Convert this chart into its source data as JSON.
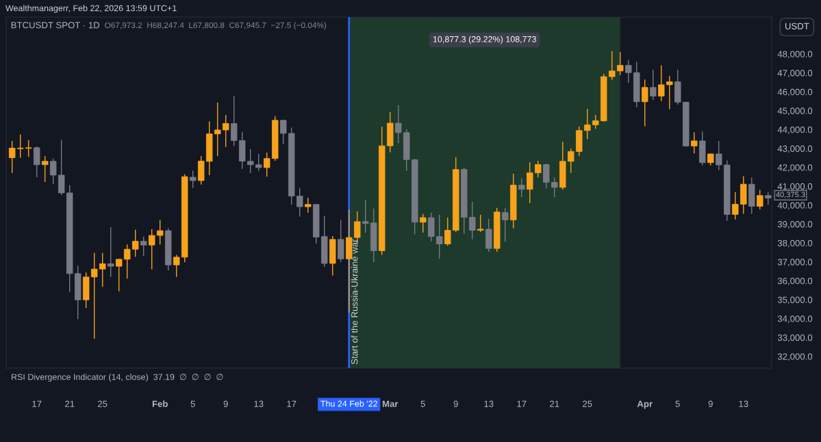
{
  "chart_data": {
    "type": "candlestick",
    "title": "BTCUSDT SPOT · 1D",
    "ylabel": "USDT",
    "annotations": [
      "Wealthmanagerr, Feb 22, 2026 13:59 UTC+1",
      "O67,973.2  H68,247.4  L67,800.8  C67,945.7  −27.5 (−0.04%)",
      "RSI Divergence Indicator (14, close)  37.19  ∅  ∅  ∅  ∅",
      "10,877.3 (29.22%) 108,773",
      {
        "text": "40,375.3",
        "x": "2022-04-16",
        "y": 40375.3
      }
    ],
    "x": [
      "2022-01-14",
      "2022-01-15",
      "2022-01-16",
      "2022-01-17",
      "2022-01-18",
      "2022-01-19",
      "2022-01-20",
      "2022-01-21",
      "2022-01-22",
      "2022-01-23",
      "2022-01-24",
      "2022-01-25",
      "2022-01-26",
      "2022-01-27",
      "2022-01-28",
      "2022-01-29",
      "2022-01-30",
      "2022-01-31",
      "2022-02-01",
      "2022-02-02",
      "2022-02-03",
      "2022-02-04",
      "2022-02-05",
      "2022-02-06",
      "2022-02-07",
      "2022-02-08",
      "2022-02-09",
      "2022-02-10",
      "2022-02-11",
      "2022-02-12",
      "2022-02-13",
      "2022-02-14",
      "2022-02-15",
      "2022-02-16",
      "2022-02-17",
      "2022-02-18",
      "2022-02-19",
      "2022-02-20",
      "2022-02-21",
      "2022-02-22",
      "2022-02-23",
      "2022-02-24",
      "2022-02-25",
      "2022-02-26",
      "2022-02-27",
      "2022-02-28",
      "2022-03-01",
      "2022-03-02",
      "2022-03-03",
      "2022-03-04",
      "2022-03-05",
      "2022-03-06",
      "2022-03-07",
      "2022-03-08",
      "2022-03-09",
      "2022-03-10",
      "2022-03-11",
      "2022-03-12",
      "2022-03-13",
      "2022-03-14",
      "2022-03-15",
      "2022-03-16",
      "2022-03-17",
      "2022-03-18",
      "2022-03-19",
      "2022-03-20",
      "2022-03-21",
      "2022-03-22",
      "2022-03-23",
      "2022-03-24",
      "2022-03-25",
      "2022-03-26",
      "2022-03-27",
      "2022-03-28",
      "2022-03-29",
      "2022-03-30",
      "2022-03-31",
      "2022-04-01",
      "2022-04-02",
      "2022-04-03",
      "2022-04-04",
      "2022-04-05",
      "2022-04-06",
      "2022-04-07",
      "2022-04-08",
      "2022-04-09",
      "2022-04-10",
      "2022-04-11",
      "2022-04-12",
      "2022-04-13",
      "2022-04-14",
      "2022-04-15",
      "2022-04-16"
    ],
    "ohlc": [
      [
        42510,
        43400,
        41710,
        43020
      ],
      [
        42990,
        43740,
        42510,
        43020
      ],
      [
        43010,
        43440,
        42560,
        43040
      ],
      [
        43040,
        43110,
        41480,
        42140
      ],
      [
        42140,
        42590,
        41230,
        42320
      ],
      [
        42320,
        42470,
        41110,
        41590
      ],
      [
        41590,
        43460,
        40540,
        40650
      ],
      [
        40650,
        41060,
        35410,
        36380
      ],
      [
        36380,
        36800,
        33970,
        34990
      ],
      [
        34990,
        36440,
        34570,
        36200
      ],
      [
        36200,
        37490,
        32940,
        36620
      ],
      [
        36620,
        37470,
        35680,
        36900
      ],
      [
        36900,
        38850,
        36200,
        36770
      ],
      [
        36770,
        37160,
        35440,
        37140
      ],
      [
        37140,
        37920,
        36110,
        37670
      ],
      [
        37670,
        38700,
        37270,
        38090
      ],
      [
        38090,
        38340,
        37320,
        37890
      ],
      [
        37890,
        38730,
        36600,
        38400
      ],
      [
        38400,
        39220,
        37920,
        38650
      ],
      [
        38650,
        38790,
        36560,
        36840
      ],
      [
        36840,
        37370,
        36200,
        37250
      ],
      [
        37250,
        41630,
        36980,
        41510
      ],
      [
        41480,
        41830,
        40910,
        41300
      ],
      [
        41300,
        42590,
        41090,
        42330
      ],
      [
        42320,
        44440,
        41590,
        43770
      ],
      [
        43770,
        45430,
        42590,
        43980
      ],
      [
        43980,
        44770,
        43080,
        44320
      ],
      [
        44320,
        45770,
        43140,
        43420
      ],
      [
        43420,
        43860,
        41910,
        42330
      ],
      [
        42320,
        42960,
        41690,
        42140
      ],
      [
        42140,
        42720,
        41810,
        41990
      ],
      [
        41990,
        42780,
        41510,
        42470
      ],
      [
        42470,
        44710,
        42350,
        44490
      ],
      [
        44490,
        44510,
        43230,
        43800
      ],
      [
        43800,
        44100,
        40020,
        40480
      ],
      [
        40480,
        40910,
        39400,
        39920
      ],
      [
        39920,
        40390,
        39610,
        40040
      ],
      [
        40040,
        40060,
        37970,
        38310
      ],
      [
        38340,
        39420,
        36740,
        36920
      ],
      [
        36920,
        38370,
        36280,
        38190
      ],
      [
        38190,
        39220,
        36980,
        37160
      ],
      [
        37160,
        39760,
        34320,
        38290
      ],
      [
        38290,
        39660,
        37970,
        39130
      ],
      [
        39130,
        40270,
        38550,
        39030
      ],
      [
        39060,
        39820,
        36980,
        37590
      ],
      [
        37590,
        44160,
        37370,
        43140
      ],
      [
        43140,
        44920,
        42800,
        44340
      ],
      [
        44340,
        45290,
        43280,
        43840
      ],
      [
        43840,
        44010,
        41810,
        42410
      ],
      [
        42410,
        42440,
        38460,
        39100
      ],
      [
        39100,
        39540,
        38550,
        39340
      ],
      [
        39340,
        39610,
        38070,
        38340
      ],
      [
        38340,
        39490,
        37160,
        37950
      ],
      [
        37950,
        39340,
        37850,
        38670
      ],
      [
        38670,
        42530,
        38580,
        41890
      ],
      [
        41890,
        41990,
        38490,
        39360
      ],
      [
        39360,
        40180,
        38190,
        38670
      ],
      [
        38670,
        39490,
        38580,
        38730
      ],
      [
        38730,
        39280,
        37530,
        37710
      ],
      [
        37710,
        39860,
        37530,
        39640
      ],
      [
        39610,
        39860,
        38070,
        39220
      ],
      [
        39220,
        41670,
        38770,
        41060
      ],
      [
        41060,
        41420,
        40420,
        40840
      ],
      [
        40840,
        42270,
        40100,
        41710
      ],
      [
        41710,
        42350,
        41470,
        42150
      ],
      [
        42150,
        42200,
        40870,
        41210
      ],
      [
        41210,
        41470,
        40420,
        40940
      ],
      [
        40940,
        43350,
        40820,
        42320
      ],
      [
        42320,
        42990,
        41710,
        42840
      ],
      [
        42840,
        44160,
        42590,
        43950
      ],
      [
        43950,
        45090,
        43500,
        44250
      ],
      [
        44250,
        44770,
        44040,
        44470
      ],
      [
        44460,
        46950,
        44420,
        46800
      ],
      [
        46800,
        48160,
        46630,
        47100
      ],
      [
        47100,
        48100,
        46890,
        47400
      ],
      [
        47400,
        47680,
        46470,
        47010
      ],
      [
        47010,
        47590,
        45180,
        45470
      ],
      [
        45470,
        46650,
        44180,
        46230
      ],
      [
        46230,
        47160,
        45570,
        45770
      ],
      [
        45770,
        47400,
        45510,
        46370
      ],
      [
        46370,
        46830,
        45080,
        46530
      ],
      [
        46530,
        47160,
        45330,
        45450
      ],
      [
        45450,
        45470,
        43100,
        43130
      ],
      [
        43130,
        43860,
        42740,
        43400
      ],
      [
        43400,
        43900,
        42100,
        42250
      ],
      [
        42250,
        42740,
        42100,
        42710
      ],
      [
        42710,
        43400,
        41860,
        42130
      ],
      [
        42130,
        42370,
        39180,
        39510
      ],
      [
        39510,
        40690,
        39240,
        40050
      ],
      [
        40050,
        41530,
        39540,
        41110
      ],
      [
        41110,
        41470,
        39540,
        39940
      ],
      [
        39940,
        40810,
        39780,
        40510
      ],
      [
        40510,
        40690,
        40020,
        40375.3
      ]
    ],
    "colors": [
      "#f7a21b",
      "#f7a21b",
      "#f7a21b",
      "#787b86",
      "#f7a21b",
      "#787b86",
      "#787b86",
      "#787b86",
      "#787b86",
      "#f7a21b",
      "#f7a21b",
      "#f7a21b",
      "#787b86",
      "#f7a21b",
      "#f7a21b",
      "#f7a21b",
      "#787b86",
      "#f7a21b",
      "#f7a21b",
      "#787b86",
      "#f7a21b",
      "#f7a21b",
      "#787b86",
      "#f7a21b",
      "#f7a21b",
      "#f7a21b",
      "#f7a21b",
      "#787b86",
      "#787b86",
      "#787b86",
      "#787b86",
      "#f7a21b",
      "#f7a21b",
      "#787b86",
      "#787b86",
      "#787b86",
      "#f7a21b",
      "#787b86",
      "#787b86",
      "#f7a21b",
      "#787b86",
      "#f7a21b",
      "#f7a21b",
      "#787b86",
      "#787b86",
      "#f7a21b",
      "#f7a21b",
      "#787b86",
      "#787b86",
      "#787b86",
      "#f7a21b",
      "#787b86",
      "#787b86",
      "#f7a21b",
      "#f7a21b",
      "#787b86",
      "#787b86",
      "#f7a21b",
      "#787b86",
      "#f7a21b",
      "#787b86",
      "#f7a21b",
      "#787b86",
      "#f7a21b",
      "#f7a21b",
      "#787b86",
      "#787b86",
      "#f7a21b",
      "#f7a21b",
      "#f7a21b",
      "#f7a21b",
      "#f7a21b",
      "#f7a21b",
      "#f7a21b",
      "#f7a21b",
      "#787b86",
      "#787b86",
      "#f7a21b",
      "#787b86",
      "#f7a21b",
      "#f7a21b",
      "#787b86",
      "#787b86",
      "#f7a21b",
      "#787b86",
      "#f7a21b",
      "#787b86",
      "#787b86",
      "#f7a21b",
      "#f7a21b",
      "#787b86",
      "#f7a21b",
      "#787b86"
    ],
    "xlim": [
      "2022-01-13T06:36",
      "2022-04-16T10:30"
    ],
    "xticks": [
      {
        "value": "2022-01-17",
        "label": "17"
      },
      {
        "value": "2022-01-21",
        "label": "21"
      },
      {
        "value": "2022-01-25",
        "label": "25"
      },
      {
        "value": "2022-02-01",
        "label": "Feb"
      },
      {
        "value": "2022-02-05",
        "label": "5"
      },
      {
        "value": "2022-02-09",
        "label": "9"
      },
      {
        "value": "2022-02-13",
        "label": "13"
      },
      {
        "value": "2022-02-17",
        "label": "17"
      },
      {
        "value": "2022-02-24",
        "label": "Thu 24 Feb '22"
      },
      {
        "value": "2022-03-01",
        "label": "Mar"
      },
      {
        "value": "2022-03-05",
        "label": "5"
      },
      {
        "value": "2022-03-09",
        "label": "9"
      },
      {
        "value": "2022-03-13",
        "label": "13"
      },
      {
        "value": "2022-03-17",
        "label": "17"
      },
      {
        "value": "2022-03-21",
        "label": "21"
      },
      {
        "value": "2022-03-25",
        "label": "25"
      },
      {
        "value": "2022-04-01",
        "label": "Apr"
      },
      {
        "value": "2022-04-05",
        "label": "5"
      },
      {
        "value": "2022-04-09",
        "label": "9"
      },
      {
        "value": "2022-04-13",
        "label": "13"
      }
    ],
    "ylim": [
      31380,
      49950
    ],
    "yticks": [
      {
        "value": 32000,
        "label": "32,000.0"
      },
      {
        "value": 33000,
        "label": "33,000.0"
      },
      {
        "value": 34000,
        "label": "34,000.0"
      },
      {
        "value": 35000,
        "label": "35,000.0"
      },
      {
        "value": 36000,
        "label": "36,000.0"
      },
      {
        "value": 37000,
        "label": "37,000.0"
      },
      {
        "value": 38000,
        "label": "38,000.0"
      },
      {
        "value": 39000,
        "label": "39,000.0"
      },
      {
        "value": 40000,
        "label": "40,000.0"
      },
      {
        "value": 41000,
        "label": "41,000.0"
      },
      {
        "value": 42000,
        "label": "42,000.0"
      },
      {
        "value": 43000,
        "label": "43,000.0"
      },
      {
        "value": 44000,
        "label": "44,000.0"
      },
      {
        "value": 45000,
        "label": "45,000.0"
      },
      {
        "value": 46000,
        "label": "46,000.0"
      },
      {
        "value": 47000,
        "label": "47,000.0"
      },
      {
        "value": 48000,
        "label": "48,000.0"
      }
    ],
    "ref_lines": [
      {
        "axis": "x",
        "value": "2022-02-24",
        "label": "Start of the Russia-Ukraine war",
        "color": "#2962ff"
      }
    ],
    "bands": [
      {
        "axis": "x",
        "from": "2022-02-24",
        "to": "2022-03-29",
        "color": "#1d3a2c"
      }
    ]
  }
}
